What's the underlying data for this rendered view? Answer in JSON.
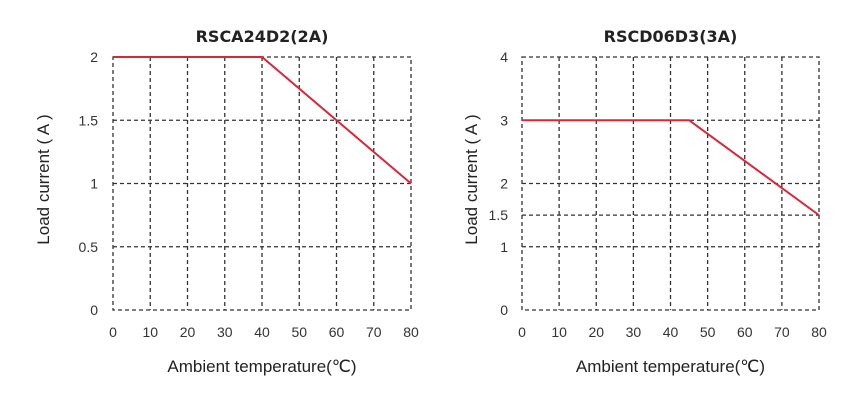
{
  "chart_data": [
    {
      "type": "line",
      "title": "RSCA24D2(2A)",
      "xlabel": "Ambient temperature(℃)",
      "ylabel": "Load current ( A )",
      "xlim": [
        0,
        80
      ],
      "ylim": [
        0,
        2
      ],
      "x_ticks": [
        0,
        10,
        20,
        30,
        40,
        50,
        60,
        70,
        80
      ],
      "x_tick_labels": [
        "0",
        "10",
        "20",
        "30",
        "40",
        "50",
        "60",
        "70",
        "80"
      ],
      "y_ticks": [
        0,
        0.5,
        1,
        1.5,
        2
      ],
      "y_tick_labels": [
        "0",
        "0.5",
        "1",
        "1.5",
        "2"
      ],
      "grid": true,
      "series": [
        {
          "x": [
            0,
            40,
            80
          ],
          "y": [
            2,
            2,
            1
          ],
          "color": "#d7283a"
        }
      ]
    },
    {
      "type": "line",
      "title": "RSCD06D3(3A)",
      "xlabel": "Ambient temperature(℃)",
      "ylabel": "Load current ( A )",
      "xlim": [
        0,
        80
      ],
      "ylim": [
        0,
        4
      ],
      "x_ticks": [
        0,
        10,
        20,
        30,
        40,
        50,
        60,
        70,
        80
      ],
      "x_tick_labels": [
        "0",
        "10",
        "20",
        "30",
        "40",
        "50",
        "60",
        "70",
        "80"
      ],
      "y_ticks": [
        0,
        1,
        1.5,
        2,
        3,
        4
      ],
      "y_tick_labels": [
        "0",
        "1",
        "1.5",
        "2",
        "3",
        "4"
      ],
      "grid": true,
      "series": [
        {
          "x": [
            0,
            45,
            80
          ],
          "y": [
            3,
            3,
            1.5
          ],
          "color": "#d7283a"
        }
      ]
    }
  ]
}
